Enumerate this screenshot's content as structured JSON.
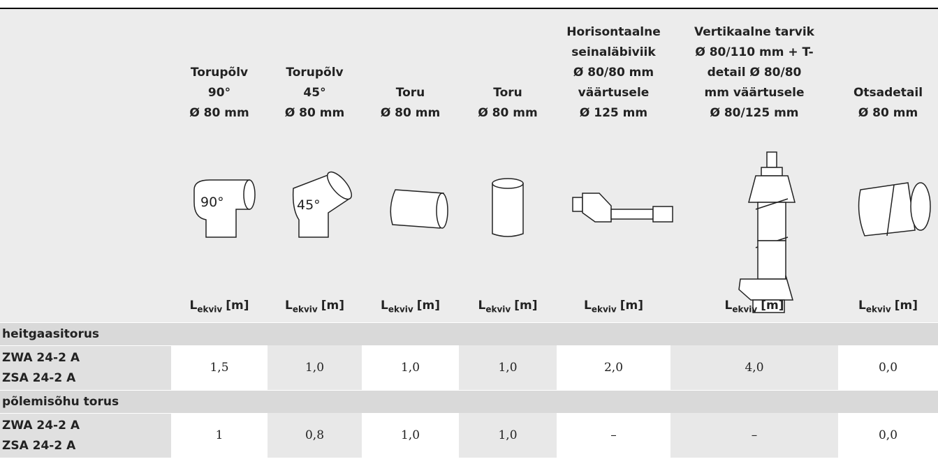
{
  "columns": [
    {
      "lines": [
        "Torupõlv",
        "90°",
        "Ø 80 mm"
      ],
      "icon_label": "90°",
      "quantity": {
        "symbol": "L",
        "subscript": "ekviv",
        "unit": "[m]"
      }
    },
    {
      "lines": [
        "Torupõlv",
        "45°",
        "Ø 80 mm"
      ],
      "icon_label": "45°",
      "quantity": {
        "symbol": "L",
        "subscript": "ekviv",
        "unit": "[m]"
      }
    },
    {
      "lines": [
        "Toru",
        "Ø 80 mm"
      ],
      "quantity": {
        "symbol": "L",
        "subscript": "ekviv",
        "unit": "[m]"
      }
    },
    {
      "lines": [
        "Toru",
        "Ø 80 mm"
      ],
      "quantity": {
        "symbol": "L",
        "subscript": "ekviv",
        "unit": "[m]"
      }
    },
    {
      "lines": [
        "Horisontaalne",
        "seinaläbiviik",
        "Ø 80/80 mm",
        "väärtusele",
        "Ø 125 mm"
      ],
      "quantity": {
        "symbol": "L",
        "subscript": "ekviv",
        "unit": "[m]"
      }
    },
    {
      "lines": [
        "Vertikaalne tarvik",
        "Ø 80/110 mm + T-",
        "detail Ø 80/80",
        "mm väärtusele",
        "Ø 80/125 mm"
      ],
      "quantity": {
        "symbol": "L",
        "subscript": "ekviv",
        "unit": "[m]"
      }
    },
    {
      "lines": [
        "Otsadetail",
        "Ø 80 mm"
      ],
      "quantity": {
        "symbol": "L",
        "subscript": "ekviv",
        "unit": "[m]"
      }
    }
  ],
  "sections": [
    {
      "title": "heitgaasitorus",
      "rows": [
        {
          "labels": [
            "ZWA 24-2 A",
            "ZSA 24-2 A"
          ],
          "values": [
            "1,5",
            "1,0",
            "1,0",
            "1,0",
            "2,0",
            "4,0",
            "0,0"
          ]
        }
      ]
    },
    {
      "title": "põlemisõhu torus",
      "rows": [
        {
          "labels": [
            "ZWA 24-2 A",
            "ZSA 24-2 A"
          ],
          "values": [
            "1",
            "0,8",
            "1,0",
            "1,0",
            "–",
            "–",
            "0,0"
          ]
        }
      ]
    }
  ]
}
